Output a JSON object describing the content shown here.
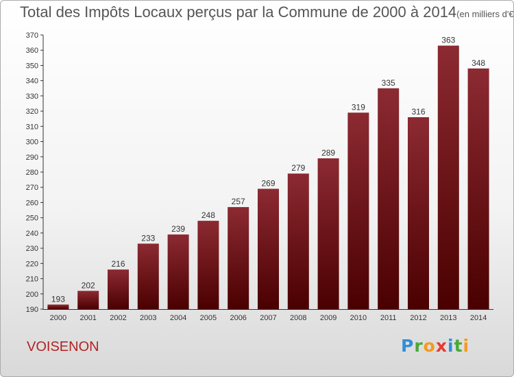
{
  "chart_data": {
    "type": "bar",
    "title": "Total des Impôts Locaux perçus par la Commune de 2000 à 2014",
    "unit_label": "(en milliers d'€)",
    "categories": [
      "2000",
      "2001",
      "2002",
      "2003",
      "2004",
      "2005",
      "2006",
      "2007",
      "2008",
      "2009",
      "2010",
      "2011",
      "2012",
      "2013",
      "2014"
    ],
    "values": [
      193,
      202,
      216,
      233,
      239,
      248,
      257,
      269,
      279,
      289,
      319,
      335,
      316,
      363,
      348
    ],
    "ylim": [
      190,
      370
    ],
    "ytick_step": 10,
    "grid": false,
    "bar_color": "#7a1820"
  },
  "commune": "VOISENON",
  "brand": {
    "letters": [
      "P",
      "r",
      "o",
      "x",
      "i",
      "t",
      "i"
    ],
    "colors": [
      "#2f8fd8",
      "#4aa83a",
      "#f39a1e",
      "#e63b2e",
      "#2f8fd8",
      "#4aa83a",
      "#f39a1e"
    ]
  }
}
